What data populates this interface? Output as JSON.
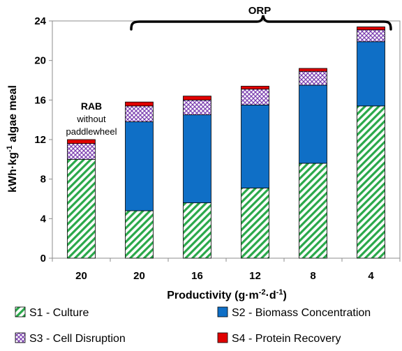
{
  "chart_data": {
    "type": "bar",
    "stacked": true,
    "categories": [
      "20",
      "20",
      "16",
      "12",
      "8",
      "4"
    ],
    "xlabel_parts": {
      "base": "Productivity (g",
      "sep1": "·m",
      "exp1": "-2",
      "sep2": "·d",
      "exp2": "-1",
      "tail": ")"
    },
    "ylabel_parts": {
      "base": "kWh·kg",
      "exp": "-1",
      "tail": " algae meal"
    },
    "ylim": [
      0,
      24
    ],
    "yticks": [
      0,
      4,
      8,
      12,
      16,
      20,
      24
    ],
    "grid": false,
    "legend_position": "bottom",
    "series": [
      {
        "name": "S1 - Culture",
        "values": [
          10.0,
          4.8,
          5.6,
          7.1,
          9.6,
          15.4
        ],
        "color": "#2aa84a",
        "pattern": "diagonal-hatch"
      },
      {
        "name": "S2 - Biomass Concentration",
        "values": [
          0.0,
          9.0,
          8.9,
          8.4,
          7.9,
          6.5
        ],
        "color": "#0f6fc6",
        "pattern": "solid"
      },
      {
        "name": "S3 - Cell Disruption",
        "values": [
          1.6,
          1.6,
          1.5,
          1.6,
          1.4,
          1.2
        ],
        "color": "#7b3fb0",
        "pattern": "cross-hatch"
      },
      {
        "name": "S4 - Protein Recovery",
        "values": [
          0.4,
          0.4,
          0.4,
          0.3,
          0.3,
          0.3
        ],
        "color": "#e00000",
        "pattern": "solid"
      }
    ],
    "annotations": {
      "rab_title": "RAB",
      "rab_line1": "without",
      "rab_line2": "paddlewheel",
      "orp_label": "ORP"
    }
  }
}
